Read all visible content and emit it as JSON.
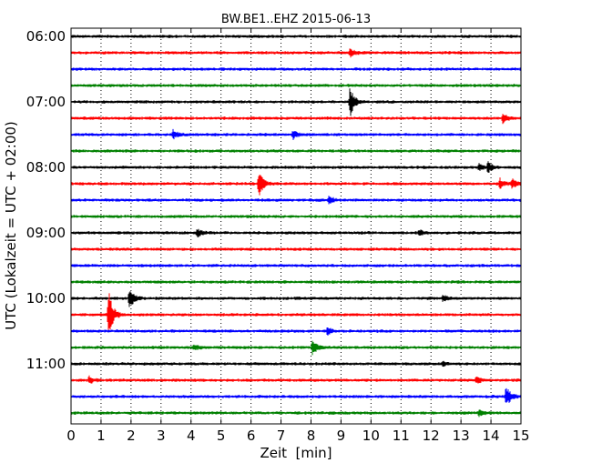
{
  "chart_data": {
    "type": "line",
    "title": "BW.BE1..EHZ 2015-06-13",
    "xlabel": "Zeit  [min]",
    "ylabel": "UTC (Lokalzeit = UTC + 02:00)",
    "xlim": [
      0,
      15
    ],
    "x_ticks": [
      0,
      1,
      2,
      3,
      4,
      5,
      6,
      7,
      8,
      9,
      10,
      11,
      12,
      13,
      14,
      15
    ],
    "y_tick_labels": [
      "06:00",
      "07:00",
      "08:00",
      "09:00",
      "10:00",
      "11:00"
    ],
    "row_start_times": [
      "06:00",
      "06:15",
      "06:30",
      "06:45",
      "07:00",
      "07:15",
      "07:30",
      "07:45",
      "08:00",
      "08:15",
      "08:30",
      "08:45",
      "09:00",
      "09:15",
      "09:30",
      "09:45",
      "10:00",
      "10:15",
      "10:30",
      "10:45",
      "11:00",
      "11:15",
      "11:30",
      "11:45"
    ],
    "series_colors": [
      "#000000",
      "#ff0000",
      "#0000ff",
      "#008000"
    ],
    "grid": "vertical dotted at each minute",
    "events": [
      {
        "row": 1,
        "minute": 9.3,
        "amplitude": 0.25
      },
      {
        "row": 4,
        "minute": 9.3,
        "amplitude": 1.0
      },
      {
        "row": 5,
        "minute": 14.4,
        "amplitude": 0.3
      },
      {
        "row": 6,
        "minute": 3.4,
        "amplitude": 0.3
      },
      {
        "row": 6,
        "minute": 7.4,
        "amplitude": 0.3
      },
      {
        "row": 8,
        "minute": 13.9,
        "amplitude": 0.35
      },
      {
        "row": 8,
        "minute": 13.6,
        "amplitude": 0.2
      },
      {
        "row": 9,
        "minute": 6.25,
        "amplitude": 0.85
      },
      {
        "row": 9,
        "minute": 14.3,
        "amplitude": 0.3
      },
      {
        "row": 9,
        "minute": 14.7,
        "amplitude": 0.3
      },
      {
        "row": 10,
        "minute": 8.6,
        "amplitude": 0.3
      },
      {
        "row": 12,
        "minute": 4.2,
        "amplitude": 0.25
      },
      {
        "row": 12,
        "minute": 11.6,
        "amplitude": 0.2
      },
      {
        "row": 16,
        "minute": 1.95,
        "amplitude": 0.7
      },
      {
        "row": 16,
        "minute": 12.4,
        "amplitude": 0.2
      },
      {
        "row": 17,
        "minute": 1.25,
        "amplitude": 1.6
      },
      {
        "row": 18,
        "minute": 8.55,
        "amplitude": 0.3
      },
      {
        "row": 19,
        "minute": 8.05,
        "amplitude": 0.5
      },
      {
        "row": 19,
        "minute": 4.1,
        "amplitude": 0.15
      },
      {
        "row": 20,
        "minute": 12.4,
        "amplitude": 0.15
      },
      {
        "row": 21,
        "minute": 0.6,
        "amplitude": 0.25
      },
      {
        "row": 21,
        "minute": 13.5,
        "amplitude": 0.25
      },
      {
        "row": 22,
        "minute": 14.5,
        "amplitude": 0.75
      },
      {
        "row": 23,
        "minute": 13.6,
        "amplitude": 0.2
      }
    ]
  }
}
